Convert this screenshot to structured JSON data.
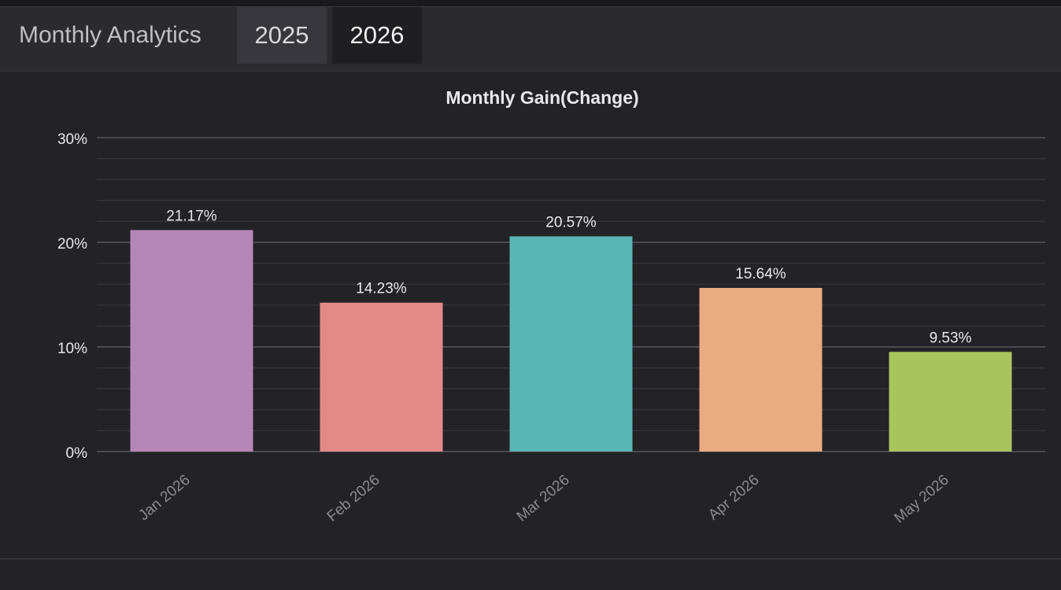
{
  "app": {
    "title": "Monthly Analytics",
    "tabs": [
      {
        "label": "2025",
        "active": false
      },
      {
        "label": "2026",
        "active": true
      }
    ]
  },
  "colors": {
    "background": "#232227",
    "grid": "#38373d",
    "text": "#e8e8ea",
    "axis_text": "#8c8b90"
  },
  "chart_data": {
    "type": "bar",
    "title": "Monthly Gain(Change)",
    "xlabel": "",
    "ylabel": "",
    "categories": [
      "Jan 2026",
      "Feb 2026",
      "Mar 2026",
      "Apr 2026",
      "May 2026"
    ],
    "values": [
      21.17,
      14.23,
      20.57,
      15.64,
      9.53
    ],
    "data_labels": [
      "21.17%",
      "14.23%",
      "20.57%",
      "15.64%",
      "9.53%"
    ],
    "bar_colors": [
      "#b587b7",
      "#e38a89",
      "#5ab5b5",
      "#e9ab81",
      "#a8c55d"
    ],
    "ylim": [
      0,
      30
    ],
    "yticks": [
      0,
      10,
      20,
      30
    ],
    "ytick_labels": [
      "0%",
      "10%",
      "20%",
      "30%"
    ],
    "grid": true,
    "legend": "none"
  }
}
